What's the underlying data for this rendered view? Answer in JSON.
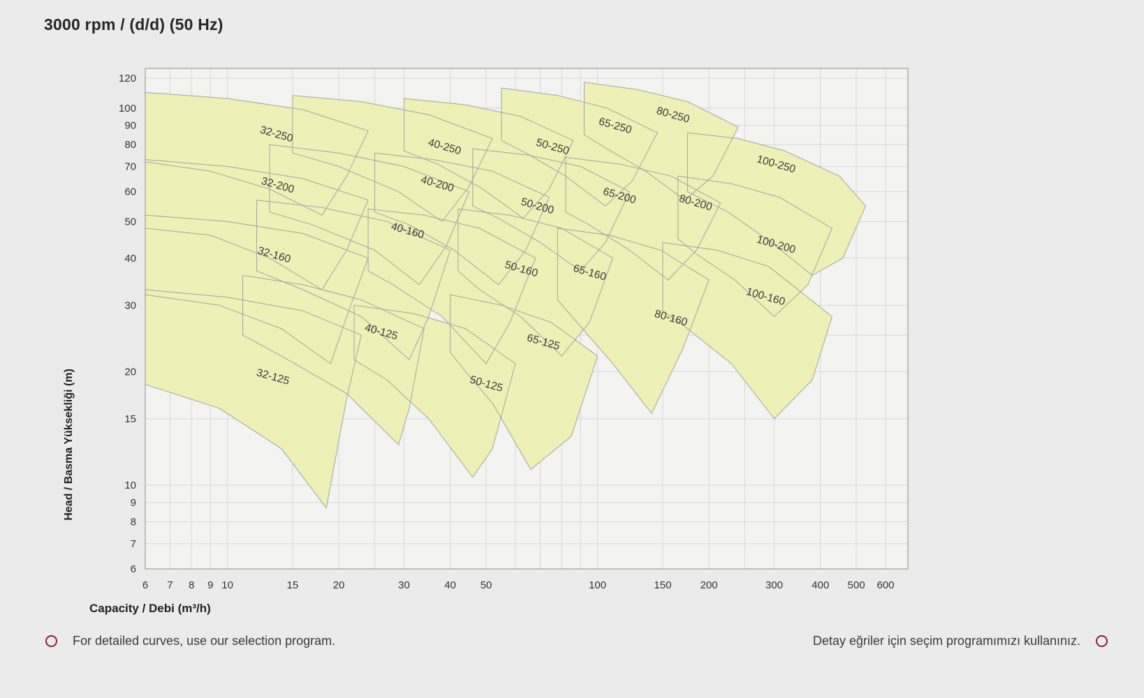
{
  "title": "3000 rpm / (d/d) (50 Hz)",
  "footer": {
    "left": "For detailed curves, use our selection program.",
    "right": "Detay eğriler için seçim programımızı kullanınız."
  },
  "colors": {
    "page_bg": "#ebebeb",
    "plot_bg": "#f3f3f1",
    "grid": "#d7d7d7",
    "plot_border": "#8f8f8f",
    "region_fill": "#eef0b6",
    "region_stroke": "#a3a3a3",
    "label_text": "#3a3a3a",
    "tick_text": "#333333",
    "bullet": "#8e2236"
  },
  "chart_data": {
    "type": "area",
    "title": "3000 rpm / (d/d) (50 Hz)",
    "xlabel": "Capacity / Debi (m³/h)",
    "ylabel": "Head / Basma Yüksekliği (m)",
    "x_scale": "log",
    "y_scale": "log",
    "xlim": [
      6,
      600
    ],
    "ylim": [
      6,
      120
    ],
    "x_ticks": [
      6,
      7,
      8,
      9,
      10,
      15,
      20,
      30,
      40,
      50,
      100,
      150,
      200,
      300,
      400,
      500,
      600
    ],
    "y_ticks": [
      6,
      7,
      8,
      9,
      10,
      15,
      20,
      30,
      40,
      50,
      60,
      70,
      80,
      90,
      100,
      120
    ],
    "grid_x": [
      6,
      7,
      8,
      9,
      10,
      15,
      20,
      25,
      30,
      40,
      50,
      60,
      70,
      80,
      90,
      100,
      150,
      200,
      250,
      300,
      400,
      500,
      600
    ],
    "grid_y": [
      6,
      7,
      8,
      9,
      10,
      15,
      20,
      25,
      30,
      40,
      50,
      60,
      70,
      80,
      90,
      100,
      120
    ],
    "grid_on": true,
    "label_rotation": 16,
    "regions": [
      {
        "name": "32-250",
        "label": {
          "q": 13.5,
          "h": 83.6
        },
        "points": [
          [
            6,
            110
          ],
          [
            10,
            106
          ],
          [
            16,
            99
          ],
          [
            24,
            87
          ],
          [
            21,
            66
          ],
          [
            18,
            52
          ],
          [
            13,
            61
          ],
          [
            9,
            68
          ],
          [
            6,
            72
          ]
        ]
      },
      {
        "name": "40-250",
        "label": {
          "q": 38.4,
          "h": 77.4
        },
        "points": [
          [
            15,
            108
          ],
          [
            23,
            104
          ],
          [
            35,
            96
          ],
          [
            52,
            83
          ],
          [
            45,
            62
          ],
          [
            38,
            50
          ],
          [
            29,
            60
          ],
          [
            20,
            70
          ],
          [
            15,
            76
          ]
        ]
      },
      {
        "name": "50-250",
        "label": {
          "q": 75.2,
          "h": 77.4
        },
        "points": [
          [
            30,
            106
          ],
          [
            44,
            102
          ],
          [
            62,
            95
          ],
          [
            86,
            82
          ],
          [
            74,
            61
          ],
          [
            63,
            51
          ],
          [
            49,
            61
          ],
          [
            37,
            71
          ],
          [
            30,
            77
          ]
        ]
      },
      {
        "name": "65-250",
        "label": {
          "q": 111,
          "h": 88
        },
        "points": [
          [
            55,
            113
          ],
          [
            78,
            108
          ],
          [
            106,
            100
          ],
          [
            145,
            86
          ],
          [
            124,
            64
          ],
          [
            105,
            55
          ],
          [
            82,
            66
          ],
          [
            64,
            76
          ],
          [
            55,
            82
          ]
        ]
      },
      {
        "name": "80-250",
        "label": {
          "q": 159,
          "h": 94
        },
        "points": [
          [
            92,
            117
          ],
          [
            128,
            112
          ],
          [
            175,
            104
          ],
          [
            240,
            89
          ],
          [
            205,
            66
          ],
          [
            172,
            57
          ],
          [
            135,
            68
          ],
          [
            106,
            78
          ],
          [
            92,
            85
          ]
        ]
      },
      {
        "name": "100-250",
        "label": {
          "q": 302,
          "h": 69.6
        },
        "points": [
          [
            175,
            86
          ],
          [
            240,
            83
          ],
          [
            320,
            77
          ],
          [
            450,
            66
          ],
          [
            530,
            55
          ],
          [
            460,
            40
          ],
          [
            380,
            36
          ],
          [
            295,
            44
          ],
          [
            225,
            53
          ],
          [
            175,
            60
          ]
        ]
      },
      {
        "name": "32-200",
        "label": {
          "q": 13.6,
          "h": 61.2
        },
        "points": [
          [
            6,
            73
          ],
          [
            10,
            70
          ],
          [
            16,
            65
          ],
          [
            24,
            57
          ],
          [
            21,
            42
          ],
          [
            18,
            33
          ],
          [
            13,
            40
          ],
          [
            9,
            46
          ],
          [
            6,
            48
          ]
        ]
      },
      {
        "name": "40-200",
        "label": {
          "q": 36.7,
          "h": 61.7
        },
        "points": [
          [
            13,
            80
          ],
          [
            20,
            76
          ],
          [
            30,
            70
          ],
          [
            45,
            60
          ],
          [
            39,
            43
          ],
          [
            33,
            34
          ],
          [
            25,
            42
          ],
          [
            17,
            49
          ],
          [
            13,
            53
          ]
        ]
      },
      {
        "name": "50-200",
        "label": {
          "q": 68.4,
          "h": 53.9
        },
        "points": [
          [
            25,
            76
          ],
          [
            36,
            73
          ],
          [
            52,
            68
          ],
          [
            74,
            58
          ],
          [
            64,
            42
          ],
          [
            54,
            34
          ],
          [
            41,
            42
          ],
          [
            31,
            49
          ],
          [
            25,
            53
          ]
        ]
      },
      {
        "name": "65-200",
        "label": {
          "q": 114,
          "h": 57.4
        },
        "points": [
          [
            46,
            78
          ],
          [
            65,
            75
          ],
          [
            90,
            70
          ],
          [
            122,
            60
          ],
          [
            105,
            44
          ],
          [
            90,
            37
          ],
          [
            70,
            44
          ],
          [
            54,
            51
          ],
          [
            46,
            55
          ]
        ]
      },
      {
        "name": "80-200",
        "label": {
          "q": 183,
          "h": 55
        },
        "points": [
          [
            82,
            74
          ],
          [
            115,
            71
          ],
          [
            158,
            66
          ],
          [
            215,
            56
          ],
          [
            185,
            42
          ],
          [
            155,
            35
          ],
          [
            122,
            42
          ],
          [
            95,
            49
          ],
          [
            82,
            53
          ]
        ]
      },
      {
        "name": "100-200",
        "label": {
          "q": 302,
          "h": 42.6
        },
        "points": [
          [
            165,
            66
          ],
          [
            230,
            63
          ],
          [
            310,
            58
          ],
          [
            430,
            48
          ],
          [
            370,
            34
          ],
          [
            300,
            28
          ],
          [
            235,
            35
          ],
          [
            185,
            41
          ],
          [
            165,
            45
          ]
        ]
      },
      {
        "name": "32-160",
        "label": {
          "q": 13.3,
          "h": 40
        },
        "points": [
          [
            6,
            52
          ],
          [
            10,
            50
          ],
          [
            16,
            46.5
          ],
          [
            24,
            40
          ],
          [
            21,
            28
          ],
          [
            19,
            21
          ],
          [
            14,
            26
          ],
          [
            9.5,
            30
          ],
          [
            6,
            32
          ]
        ]
      },
      {
        "name": "40-160",
        "label": {
          "q": 30.5,
          "h": 46.4
        },
        "points": [
          [
            12,
            57
          ],
          [
            18,
            54.5
          ],
          [
            27,
            50
          ],
          [
            40,
            42
          ],
          [
            35,
            28
          ],
          [
            31,
            21.5
          ],
          [
            23,
            28
          ],
          [
            16,
            33
          ],
          [
            12,
            37
          ]
        ]
      },
      {
        "name": "50-160",
        "label": {
          "q": 61.9,
          "h": 36.7
        },
        "points": [
          [
            24,
            54
          ],
          [
            34,
            52
          ],
          [
            48,
            48
          ],
          [
            68,
            40
          ],
          [
            58,
            27
          ],
          [
            50,
            21
          ],
          [
            38,
            28
          ],
          [
            28,
            34
          ],
          [
            24,
            37
          ]
        ]
      },
      {
        "name": "65-160",
        "label": {
          "q": 94.7,
          "h": 35.9
        },
        "points": [
          [
            42,
            54
          ],
          [
            58,
            52
          ],
          [
            80,
            48
          ],
          [
            110,
            40
          ],
          [
            95,
            27
          ],
          [
            80,
            22
          ],
          [
            62,
            28
          ],
          [
            48,
            33
          ],
          [
            42,
            37
          ]
        ]
      },
      {
        "name": "80-160",
        "label": {
          "q": 157,
          "h": 27.2
        },
        "points": [
          [
            78,
            48
          ],
          [
            108,
            46
          ],
          [
            148,
            42
          ],
          [
            200,
            35
          ],
          [
            170,
            23
          ],
          [
            140,
            15.5
          ],
          [
            110,
            21
          ],
          [
            88,
            27
          ],
          [
            78,
            31
          ]
        ]
      },
      {
        "name": "100-160",
        "label": {
          "q": 283,
          "h": 31
        },
        "points": [
          [
            150,
            44
          ],
          [
            210,
            42
          ],
          [
            290,
            38
          ],
          [
            430,
            28
          ],
          [
            380,
            19
          ],
          [
            300,
            15
          ],
          [
            230,
            21
          ],
          [
            175,
            26
          ],
          [
            150,
            29
          ]
        ]
      },
      {
        "name": "32-125",
        "label": {
          "q": 13.2,
          "h": 19
        },
        "points": [
          [
            6,
            33
          ],
          [
            10,
            31.5
          ],
          [
            16,
            29
          ],
          [
            23,
            25
          ],
          [
            21,
            17
          ],
          [
            18.5,
            8.7
          ],
          [
            14,
            12.5
          ],
          [
            9.5,
            16
          ],
          [
            6,
            18.5
          ]
        ]
      },
      {
        "name": "40-125",
        "label": {
          "q": 25.9,
          "h": 25
        },
        "points": [
          [
            11,
            36
          ],
          [
            16,
            34
          ],
          [
            23,
            31
          ],
          [
            34,
            26
          ],
          [
            31,
            16
          ],
          [
            29,
            12.8
          ],
          [
            21,
            17.5
          ],
          [
            14,
            22
          ],
          [
            11,
            25
          ]
        ]
      },
      {
        "name": "50-125",
        "label": {
          "q": 49.8,
          "h": 18.2
        },
        "points": [
          [
            22,
            30
          ],
          [
            32,
            28.5
          ],
          [
            44,
            26
          ],
          [
            60,
            21
          ],
          [
            52,
            12.5
          ],
          [
            46,
            10.5
          ],
          [
            35,
            15
          ],
          [
            27,
            19
          ],
          [
            22,
            21.5
          ]
        ]
      },
      {
        "name": "65-125",
        "label": {
          "q": 71,
          "h": 23.5
        },
        "points": [
          [
            40,
            32
          ],
          [
            55,
            30
          ],
          [
            75,
            27
          ],
          [
            100,
            22
          ],
          [
            85,
            13.5
          ],
          [
            66,
            11
          ],
          [
            52,
            16.5
          ],
          [
            44,
            20
          ],
          [
            40,
            22.5
          ]
        ]
      }
    ]
  }
}
